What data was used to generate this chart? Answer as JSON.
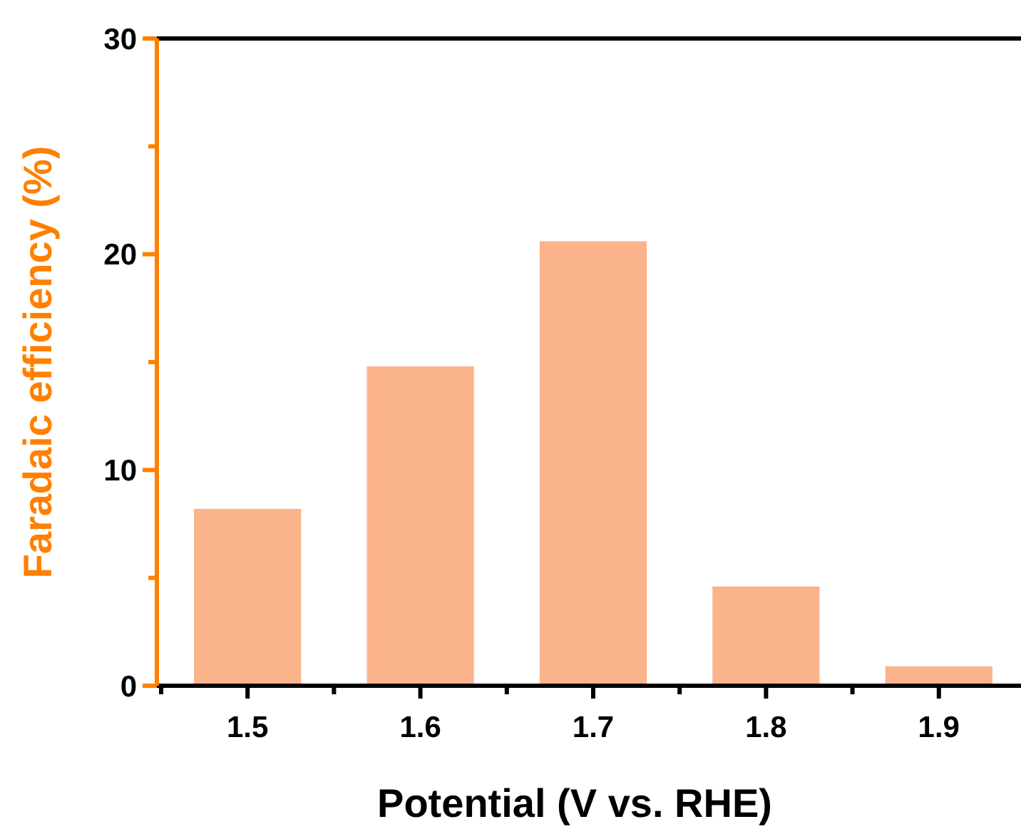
{
  "chart_data": {
    "type": "bar",
    "xlabel": "Potential (V vs. RHE)",
    "ylabel": "Faradaic efficiency (%)",
    "categories": [
      "1.5",
      "1.6",
      "1.7",
      "1.8",
      "1.9"
    ],
    "values": [
      8.2,
      14.8,
      20.6,
      4.6,
      0.9
    ],
    "color": "#fbb38c",
    "ylim": [
      0,
      30
    ],
    "yticks": [
      0,
      {
        "value": 5,
        "label": null
      },
      10,
      {
        "value": 15,
        "label": null
      },
      20,
      {
        "value": 25,
        "label": null
      },
      30
    ],
    "grid": false
  }
}
